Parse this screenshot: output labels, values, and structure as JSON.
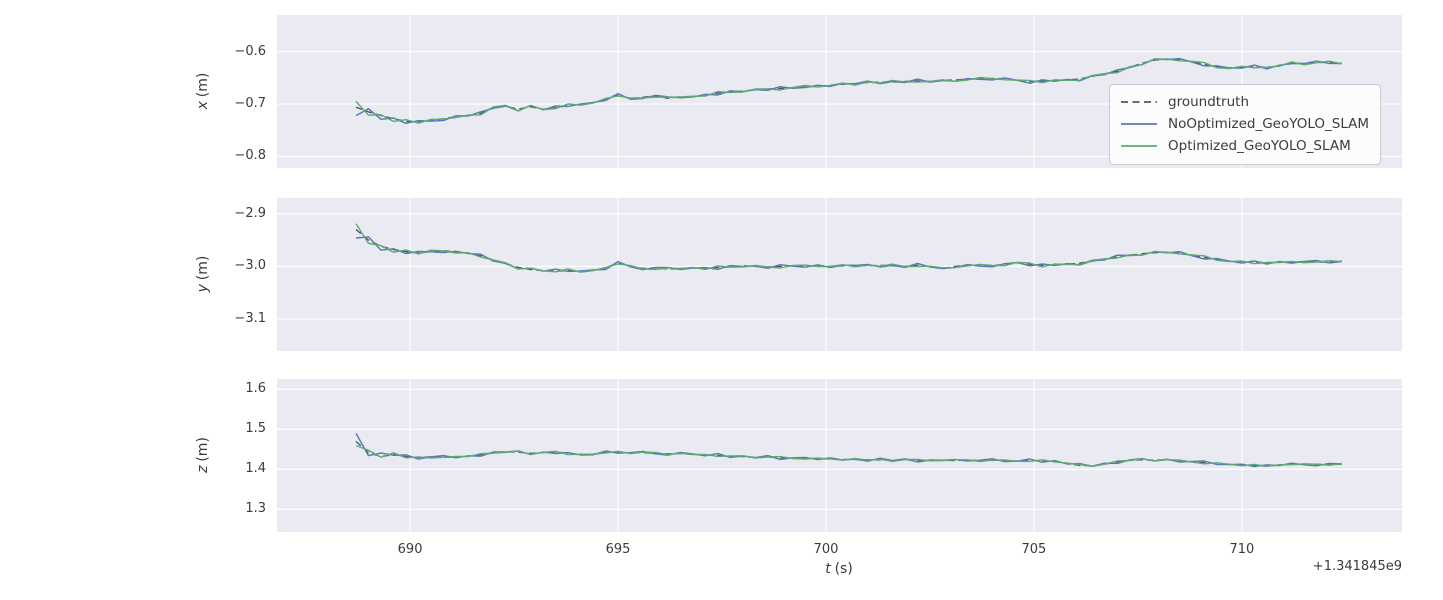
{
  "figure": {
    "background": "#ffffff",
    "plot_background": "#eaeaf2",
    "grid_color": "#ffffff"
  },
  "chart_data": {
    "type": "line",
    "title": "",
    "x_start": 688.7,
    "x_step": 0.3,
    "xlim": [
      686.8,
      713.85
    ],
    "xticks": [
      690,
      695,
      700,
      705,
      710
    ],
    "xlabel": {
      "var": "t",
      "unit": "(s)"
    },
    "x_offset_text": "+1.341845e9",
    "grid": "on",
    "legend_position": "upper-right-first-subplot",
    "colors": {
      "groundtruth": "#55565b",
      "blue": "#5878b4",
      "green": "#5cab72"
    },
    "legend": [
      {
        "label": "groundtruth",
        "style": "dashed",
        "color": "#55565b"
      },
      {
        "label": "NoOptimized_GeoYOLO_SLAM",
        "style": "solid",
        "color": "#5878b4"
      },
      {
        "label": "Optimized_GeoYOLO_SLAM",
        "style": "solid",
        "color": "#5cab72"
      }
    ],
    "noise": {
      "nA": [
        1.0,
        -0.5,
        0.8,
        -0.2,
        0.6,
        -0.7,
        0.1,
        0.9,
        -0.4,
        0.2,
        -0.8,
        0.5,
        -0.1,
        0.7,
        -0.6,
        0.3,
        -0.9,
        0.4,
        0.0,
        -0.3,
        0.8,
        -0.5,
        0.2,
        0.6,
        -0.2,
        -0.7,
        0.5,
        0.1,
        -0.4,
        0.9,
        -0.6,
        0.3,
        -0.1,
        0.7,
        -0.8,
        0.2,
        0.4,
        -0.5,
        0.6,
        -0.3,
        0.1,
        -0.7,
        0.8,
        -0.2,
        0.5,
        -0.9,
        0.3,
        0.0,
        0.6,
        -0.4,
        0.2,
        0.7,
        -0.5,
        -0.1,
        0.8,
        -0.6,
        0.4,
        -0.3,
        0.9,
        -0.2,
        0.5,
        -0.8,
        0.1,
        0.6,
        -0.4,
        0.3,
        -0.7,
        0.2,
        0.8,
        -0.5,
        0.0,
        0.4,
        -0.6,
        0.7,
        -0.3,
        0.5,
        -0.1,
        -0.8,
        0.6,
        0.2
      ],
      "nB": [
        -0.8,
        0.6,
        -0.2,
        0.8,
        -0.6,
        0.3,
        -0.8,
        0.1,
        0.5,
        -0.3,
        0.7,
        -0.1,
        -0.5,
        0.9,
        -0.7,
        0.2,
        0.4,
        -0.9,
        0.6,
        0.0,
        -0.2,
        0.7,
        -0.4,
        0.3,
        0.8,
        -0.6,
        0.1,
        -0.3,
        0.5,
        -0.8,
        0.2,
        0.6,
        -0.5,
        0.0,
        0.9,
        -0.2,
        -0.7,
        0.4,
        0.1,
        -0.6,
        0.8,
        -0.3,
        0.5,
        -0.9,
        0.2,
        0.6,
        -0.1,
        -0.4,
        0.7,
        0.3,
        -0.8,
        0.1,
        0.5,
        -0.2,
        -0.6,
        0.9,
        -0.4,
        0.2,
        0.7,
        -0.5,
        0.0,
        0.6,
        -0.3,
        0.8,
        -0.7,
        0.1,
        0.4,
        -0.2,
        -0.9,
        0.5,
        0.3,
        -0.6,
        0.8,
        -0.1,
        0.2,
        -0.4,
        0.6,
        0.0,
        -0.5,
        0.3
      ],
      "spread_head": [
        4,
        3,
        2.2,
        1.8,
        1.5,
        1.2
      ]
    },
    "subplots": [
      {
        "id": "x",
        "ylabel": {
          "var": "x",
          "unit": "(m)"
        },
        "ylim": [
          -0.822,
          -0.53
        ],
        "yticks": [
          -0.6,
          -0.7,
          -0.8
        ],
        "blue_amp": -0.004,
        "green_amp": -0.0035,
        "gt": [
          -0.706,
          -0.715,
          -0.722,
          -0.728,
          -0.733,
          -0.735,
          -0.732,
          -0.728,
          -0.724,
          -0.722,
          -0.718,
          -0.706,
          -0.704,
          -0.71,
          -0.705,
          -0.71,
          -0.707,
          -0.703,
          -0.7,
          -0.698,
          -0.69,
          -0.682,
          -0.69,
          -0.687,
          -0.684,
          -0.689,
          -0.686,
          -0.686,
          -0.683,
          -0.679,
          -0.677,
          -0.675,
          -0.673,
          -0.671,
          -0.67,
          -0.669,
          -0.667,
          -0.666,
          -0.664,
          -0.662,
          -0.661,
          -0.659,
          -0.658,
          -0.658,
          -0.657,
          -0.656,
          -0.657,
          -0.655,
          -0.654,
          -0.653,
          -0.652,
          -0.651,
          -0.652,
          -0.655,
          -0.657,
          -0.656,
          -0.655,
          -0.654,
          -0.652,
          -0.647,
          -0.642,
          -0.638,
          -0.63,
          -0.622,
          -0.616,
          -0.614,
          -0.616,
          -0.619,
          -0.624,
          -0.629,
          -0.631,
          -0.63,
          -0.628,
          -0.63,
          -0.627,
          -0.621,
          -0.623,
          -0.621,
          -0.62,
          -0.622
        ]
      },
      {
        "id": "y",
        "ylabel": {
          "var": "y",
          "unit": "(m)"
        },
        "ylim": [
          -3.161,
          -2.87
        ],
        "yticks": [
          -2.9,
          -3.0,
          -3.1
        ],
        "blue_amp": -0.004,
        "green_amp": -0.0035,
        "gt": [
          -2.93,
          -2.95,
          -2.962,
          -2.968,
          -2.972,
          -2.975,
          -2.972,
          -2.97,
          -2.973,
          -2.975,
          -2.98,
          -2.988,
          -2.995,
          -3.002,
          -3.006,
          -3.008,
          -3.009,
          -3.008,
          -3.009,
          -3.008,
          -3.003,
          -2.993,
          -3.0,
          -3.004,
          -3.003,
          -3.005,
          -3.004,
          -3.003,
          -3.004,
          -3.002,
          -3.001,
          -2.999,
          -3.0,
          -3.001,
          -3.0,
          -2.999,
          -3.0,
          -2.999,
          -3.0,
          -2.999,
          -2.998,
          -2.999,
          -2.998,
          -2.999,
          -3.0,
          -2.998,
          -3.0,
          -3.004,
          -3.0,
          -2.998,
          -2.999,
          -2.998,
          -2.997,
          -2.993,
          -2.996,
          -2.998,
          -2.997,
          -2.996,
          -2.994,
          -2.99,
          -2.986,
          -2.982,
          -2.979,
          -2.976,
          -2.974,
          -2.973,
          -2.975,
          -2.979,
          -2.983,
          -2.987,
          -2.99,
          -2.992,
          -2.992,
          -2.993,
          -2.992,
          -2.992,
          -2.991,
          -2.992,
          -2.991,
          -2.99
        ]
      },
      {
        "id": "z",
        "ylabel": {
          "var": "z",
          "unit": "(m)"
        },
        "ylim": [
          1.2435,
          1.626
        ],
        "yticks": [
          1.6,
          1.5,
          1.4,
          1.3
        ],
        "blue_amp": 0.005,
        "green_amp": 0.0032,
        "gt": [
          1.47,
          1.442,
          1.432,
          1.437,
          1.432,
          1.43,
          1.431,
          1.43,
          1.431,
          1.433,
          1.437,
          1.441,
          1.444,
          1.443,
          1.44,
          1.442,
          1.444,
          1.44,
          1.436,
          1.438,
          1.442,
          1.443,
          1.441,
          1.442,
          1.44,
          1.439,
          1.44,
          1.438,
          1.436,
          1.435,
          1.433,
          1.432,
          1.43,
          1.431,
          1.429,
          1.428,
          1.428,
          1.427,
          1.426,
          1.425,
          1.425,
          1.424,
          1.424,
          1.423,
          1.424,
          1.423,
          1.422,
          1.423,
          1.422,
          1.423,
          1.422,
          1.423,
          1.422,
          1.421,
          1.422,
          1.421,
          1.42,
          1.415,
          1.41,
          1.409,
          1.413,
          1.419,
          1.423,
          1.424,
          1.423,
          1.424,
          1.422,
          1.419,
          1.417,
          1.415,
          1.412,
          1.411,
          1.41,
          1.408,
          1.411,
          1.413,
          1.412,
          1.413,
          1.412,
          1.413
        ]
      }
    ]
  }
}
